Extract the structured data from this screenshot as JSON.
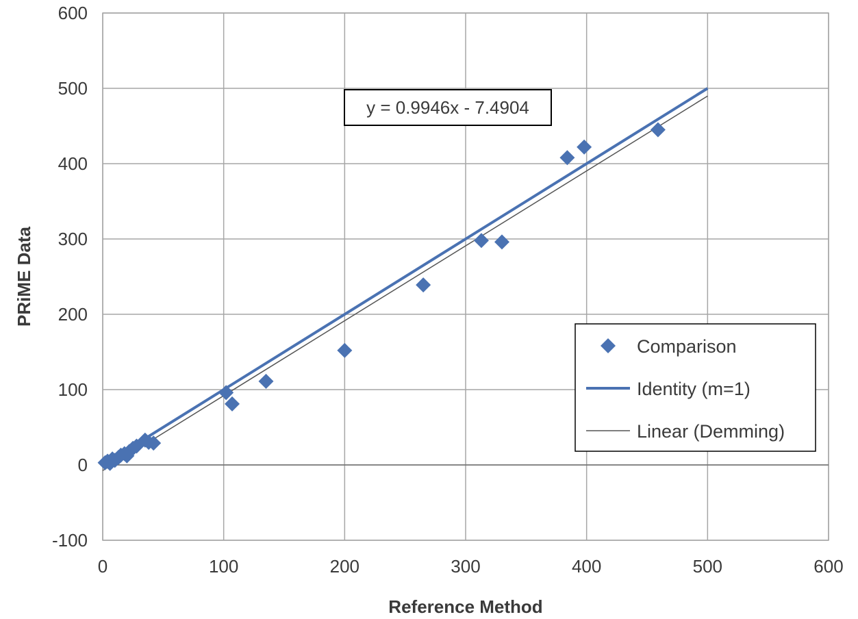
{
  "chart_data": {
    "type": "scatter",
    "xlabel": "Reference Method",
    "ylabel": "PRiME Data",
    "xlim": [
      0,
      600
    ],
    "ylim": [
      -100,
      600
    ],
    "xticks": [
      "0",
      "100",
      "200",
      "300",
      "400",
      "500",
      "600"
    ],
    "yticks": [
      "-100",
      "0",
      "100",
      "200",
      "300",
      "400",
      "500",
      "600"
    ],
    "grid": true,
    "legend_position": "lower-right",
    "equation_label": "y = 0.9946x - 7.4904",
    "series": [
      {
        "name": "Comparison",
        "kind": "points",
        "color": "#4a72b2",
        "x": [
          2,
          4,
          6,
          8,
          10,
          13,
          15,
          18,
          20,
          22,
          25,
          28,
          35,
          38,
          42,
          102,
          107,
          135,
          200,
          265,
          313,
          330,
          384,
          398,
          459
        ],
        "y": [
          3,
          5,
          2,
          8,
          6,
          10,
          13,
          15,
          12,
          18,
          22,
          25,
          33,
          30,
          29,
          96,
          81,
          111,
          152,
          239,
          298,
          296,
          408,
          422,
          445
        ]
      },
      {
        "name": "Identity (m=1)",
        "kind": "line",
        "color": "#4a72b2",
        "x": [
          0,
          500
        ],
        "y": [
          0,
          500
        ]
      },
      {
        "name": "Linear (Demming)",
        "kind": "line",
        "color": "#555555",
        "x": [
          0,
          500
        ],
        "y": [
          -7.4904,
          489.8096
        ]
      }
    ]
  }
}
